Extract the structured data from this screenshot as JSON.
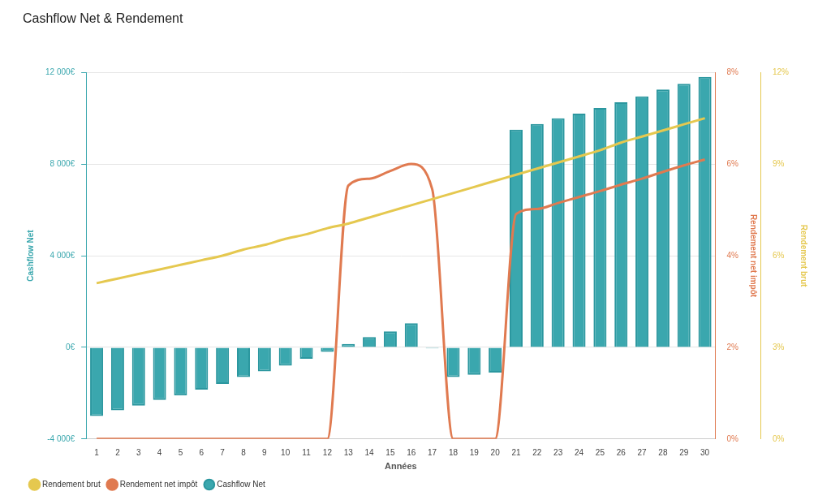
{
  "chart_data": {
    "type": "bar",
    "title": "Cashflow Net & Rendement",
    "x_label": "Années",
    "y_label": "Cashflow Net",
    "y2_label": "Rendement net impôt",
    "y3_label": "Rendement brut",
    "categories": [
      1,
      2,
      3,
      4,
      5,
      6,
      7,
      8,
      9,
      10,
      11,
      12,
      13,
      14,
      15,
      16,
      17,
      18,
      19,
      20,
      21,
      22,
      23,
      24,
      25,
      26,
      27,
      28,
      29,
      30
    ],
    "ylim": [
      -4000,
      12000
    ],
    "yticks": [
      {
        "value": -4000,
        "label": "-4 000€"
      },
      {
        "value": 0,
        "label": "0€"
      },
      {
        "value": 4000,
        "label": "4 000€"
      },
      {
        "value": 8000,
        "label": "8 000€"
      },
      {
        "value": 12000,
        "label": "12 000€"
      }
    ],
    "y2lim": [
      0,
      8
    ],
    "y2ticks": [
      {
        "value": 0,
        "label": "0%"
      },
      {
        "value": 2,
        "label": "2%"
      },
      {
        "value": 4,
        "label": "4%"
      },
      {
        "value": 6,
        "label": "6%"
      },
      {
        "value": 8,
        "label": "8%"
      }
    ],
    "y3lim": [
      0,
      12
    ],
    "y3ticks": [
      {
        "value": 0,
        "label": "0%"
      },
      {
        "value": 3,
        "label": "3%"
      },
      {
        "value": 6,
        "label": "6%"
      },
      {
        "value": 9,
        "label": "9%"
      },
      {
        "value": 12,
        "label": "12%"
      }
    ],
    "grid": true,
    "legend": "bottom-left",
    "series": [
      {
        "name": "Cashflow Net",
        "type": "bar",
        "color": "#3aa7ae",
        "values": [
          -3000,
          -2750,
          -2550,
          -2300,
          -2100,
          -1850,
          -1600,
          -1300,
          -1050,
          -800,
          -500,
          -200,
          150,
          450,
          700,
          1050,
          -50,
          -1300,
          -1200,
          -1100,
          9500,
          9750,
          10000,
          10200,
          10450,
          10700,
          10950,
          11250,
          11500,
          11800
        ]
      },
      {
        "name": "Rendement net impôt",
        "type": "line",
        "axis": "y2",
        "color": "#e07a50",
        "marker": "none",
        "line_style": "solid",
        "values": [
          0,
          0,
          0,
          0,
          0,
          0,
          0,
          0,
          0,
          0,
          0,
          0,
          5.53,
          5.68,
          5.85,
          6.0,
          5.45,
          0,
          0,
          0,
          4.91,
          5.02,
          5.15,
          5.28,
          5.41,
          5.55,
          5.68,
          5.83,
          5.97,
          6.1
        ]
      },
      {
        "name": "Rendement brut",
        "type": "line",
        "axis": "y3",
        "color": "#e5c84f",
        "marker": "none",
        "line_style": "solid",
        "values": [
          5.1,
          5.25,
          5.4,
          5.55,
          5.7,
          5.85,
          6.0,
          6.2,
          6.35,
          6.55,
          6.7,
          6.9,
          7.05,
          7.25,
          7.45,
          7.65,
          7.85,
          8.05,
          8.25,
          8.45,
          8.65,
          8.85,
          9.05,
          9.25,
          9.45,
          9.7,
          9.9,
          10.1,
          10.3,
          10.5
        ]
      }
    ]
  }
}
